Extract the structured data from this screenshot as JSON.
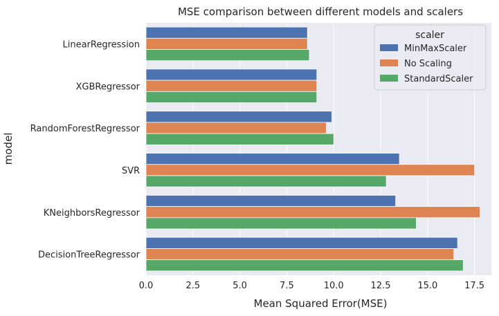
{
  "chart_data": {
    "type": "bar",
    "orientation": "horizontal",
    "title": "MSE comparison between different models and scalers",
    "xlabel": "Mean Squared Error(MSE)",
    "ylabel": "model",
    "xlim": [
      0,
      18.4
    ],
    "xticks": [
      "0.0",
      "2.5",
      "5.0",
      "7.5",
      "10.0",
      "12.5",
      "15.0",
      "17.5"
    ],
    "grid": true,
    "legend_position": "top-right",
    "legend_title": "scaler",
    "categories": [
      "LinearRegression",
      "XGBRegressor",
      "RandomForestRegressor",
      "SVR",
      "KNeighborsRegressor",
      "DecisionTreeRegressor"
    ],
    "series": [
      {
        "name": "MinMaxScaler",
        "color": "#4c72b0",
        "values": [
          8.6,
          9.1,
          9.9,
          13.5,
          13.3,
          16.6
        ]
      },
      {
        "name": "No Scaling",
        "color": "#dd8452",
        "values": [
          8.6,
          9.1,
          9.6,
          17.5,
          17.8,
          16.4
        ]
      },
      {
        "name": "StandardScaler",
        "color": "#55a868",
        "values": [
          8.7,
          9.1,
          10.0,
          12.8,
          14.4,
          16.9
        ]
      }
    ],
    "plot_background": "#eaeaf2",
    "grid_color": "#ffffff"
  }
}
